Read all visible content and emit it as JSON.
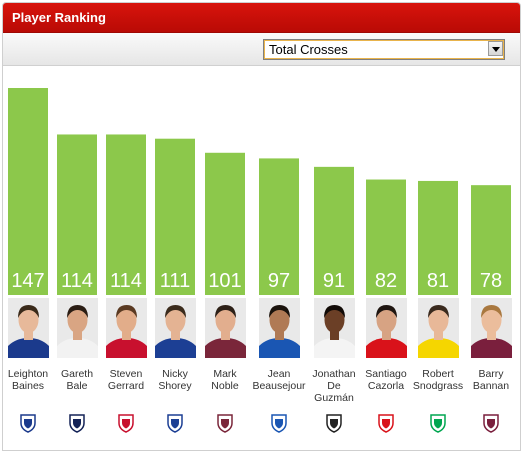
{
  "widget": {
    "title": "Player Ranking"
  },
  "selector": {
    "selected": "Total Crosses"
  },
  "colors": {
    "header": "#d10f08",
    "bar": "#8cc84b",
    "bar_label": "#ffffff"
  },
  "chart_data": {
    "type": "bar",
    "categories": [
      "Leighton Baines",
      "Gareth Bale",
      "Steven Gerrard",
      "Nicky Shorey",
      "Mark Noble",
      "Jean Beausejour",
      "Jonathan De Guzmán",
      "Santiago Cazorla",
      "Robert Snodgrass",
      "Barry Bannan"
    ],
    "values": [
      147,
      114,
      114,
      111,
      101,
      97,
      91,
      82,
      81,
      78
    ]
  },
  "players": [
    {
      "name_lines": [
        "Leighton",
        "Baines"
      ],
      "club_icon": "everton-badge-icon",
      "shirt": "#1b3a8c",
      "skin": "#e7b99a",
      "hair": "#3a2a1a"
    },
    {
      "name_lines": [
        "Gareth",
        "Bale"
      ],
      "club_icon": "tottenham-badge-icon",
      "shirt": "#f2f2f2",
      "skin": "#d9a583",
      "hair": "#2a1d14"
    },
    {
      "name_lines": [
        "Steven",
        "Gerrard"
      ],
      "club_icon": "liverpool-badge-icon",
      "shirt": "#c8102e",
      "skin": "#e2ad8a",
      "hair": "#5a3a22"
    },
    {
      "name_lines": [
        "Nicky",
        "Shorey"
      ],
      "club_icon": "reading-badge-icon",
      "shirt": "#1c3f94",
      "skin": "#e4b393",
      "hair": "#3b2b1c"
    },
    {
      "name_lines": [
        "Mark",
        "Noble"
      ],
      "club_icon": "west-ham-badge-icon",
      "shirt": "#7a263a",
      "skin": "#e2ae8e",
      "hair": "#2d2017"
    },
    {
      "name_lines": [
        "Jean",
        "Beausejour"
      ],
      "club_icon": "wigan-badge-icon",
      "shirt": "#1a56b3",
      "skin": "#b07a55",
      "hair": "#1a120c"
    },
    {
      "name_lines": [
        "Jonathan",
        "De",
        "Guzmán"
      ],
      "club_icon": "swansea-badge-icon",
      "shirt": "#f4f4f4",
      "skin": "#6b3f26",
      "hair": "#120b07"
    },
    {
      "name_lines": [
        "Santiago",
        "Cazorla"
      ],
      "club_icon": "arsenal-badge-icon",
      "shirt": "#d9121a",
      "skin": "#d7a383",
      "hair": "#1f1611"
    },
    {
      "name_lines": [
        "Robert",
        "Snodgrass"
      ],
      "club_icon": "norwich-badge-icon",
      "shirt": "#f5d600",
      "skin": "#e8b898",
      "hair": "#3a2a1e"
    },
    {
      "name_lines": [
        "Barry",
        "Bannan"
      ],
      "club_icon": "aston-villa-badge-icon",
      "shirt": "#7a1f3d",
      "skin": "#ebbd9c",
      "hair": "#a9783f"
    }
  ]
}
